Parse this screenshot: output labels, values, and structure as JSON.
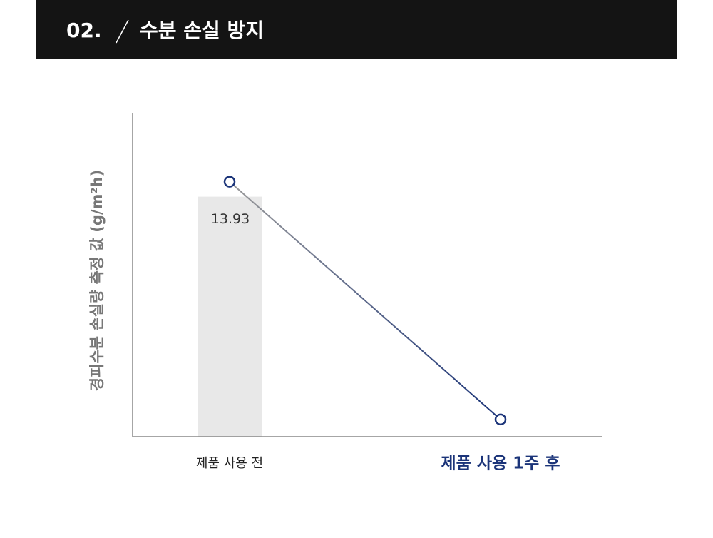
{
  "header": {
    "number": "02.",
    "title": "수분 손실 방지"
  },
  "chart_data": {
    "type": "combo",
    "ylabel": "경피수분 손실량 측정 값 (g/m²h)",
    "categories": [
      "제품 사용 전",
      "제품 사용 1주 후"
    ],
    "ylim": [
      0,
      18.8
    ],
    "series": [
      {
        "type": "bar",
        "color": "#e8e8e8",
        "values": [
          13.93,
          null
        ]
      },
      {
        "type": "line",
        "color": "#1b3479",
        "values": [
          14.8,
          1.0
        ]
      }
    ]
  }
}
